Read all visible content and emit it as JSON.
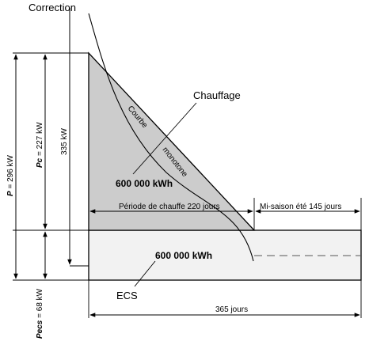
{
  "labels": {
    "correction": "Correction",
    "chauffage": "Chauffage",
    "courbe": "Courbe",
    "monotone": "monotone",
    "energy_chauffage": "600 000 kWh",
    "energy_ecs": "600 000 kWh",
    "ecs": "ECS",
    "periode_chauffe": "Période de chauffe 220 jours",
    "mi_saison": "Mi-saison été 145 jours",
    "total_jours": "365 jours",
    "p_total_var": "P",
    "p_total_val": " = 296 kW",
    "pc_var": "Pc",
    "pc_val": " = 227 kW",
    "p_335": "335 kW",
    "pecs_var": "Pecs",
    "pecs_val": " = 68 kW"
  },
  "colors": {
    "heating_fill": "#cccccc",
    "ecs_fill": "#f2f2f2",
    "line": "#000000"
  }
}
